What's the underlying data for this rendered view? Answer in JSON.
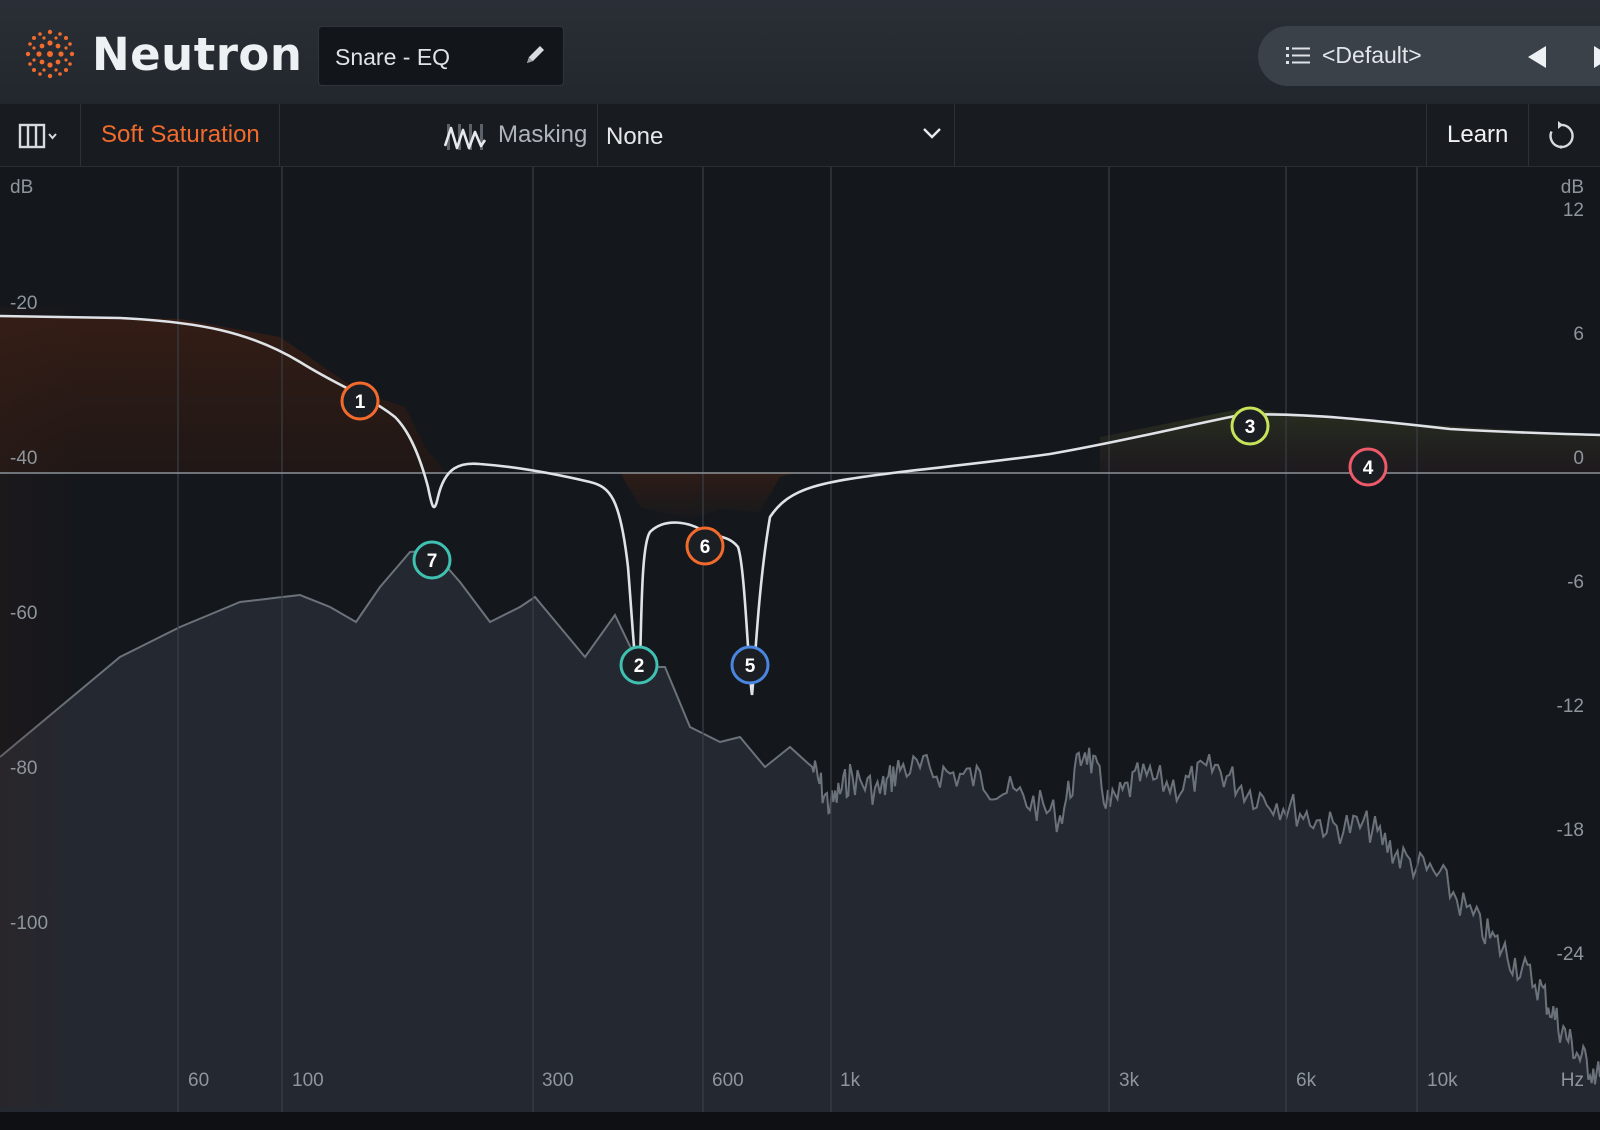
{
  "header": {
    "brand": "Neutron",
    "preset_name": "Snare - EQ",
    "preset_menu_label": "<Default>"
  },
  "toolbar": {
    "soft_saturation": "Soft Saturation",
    "masking_label": "Masking",
    "masking_value": "None",
    "learn_label": "Learn"
  },
  "colors": {
    "accent_orange": "#f26b2d",
    "node_teal": "#3fc0b0",
    "node_yellow_green": "#c7e35a",
    "node_red": "#ee5a6a",
    "node_blue": "#4a86e0"
  },
  "graph": {
    "left_axis_unit": "dB",
    "right_axis_unit": "dB",
    "left_ticks": [
      "-20",
      "-40",
      "-60",
      "-80",
      "-100"
    ],
    "right_ticks": [
      "12",
      "6",
      "0",
      "-6",
      "-12",
      "-18",
      "-24"
    ],
    "freq_labels": [
      "60",
      "100",
      "300",
      "600",
      "1k",
      "3k",
      "6k",
      "10k"
    ],
    "freq_unit": "Hz",
    "nodes": [
      {
        "id": "1",
        "color": "#f26b2d"
      },
      {
        "id": "2",
        "color": "#3fc0b0"
      },
      {
        "id": "3",
        "color": "#c7e35a"
      },
      {
        "id": "4",
        "color": "#ee5a6a"
      },
      {
        "id": "5",
        "color": "#4a86e0"
      },
      {
        "id": "6",
        "color": "#f26b2d"
      },
      {
        "id": "7",
        "color": "#3fc0b0"
      }
    ]
  }
}
